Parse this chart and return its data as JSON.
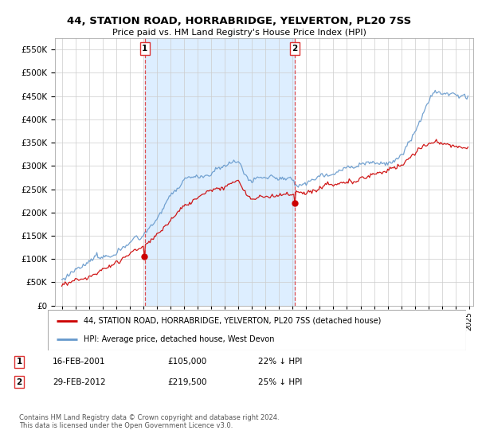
{
  "title": "44, STATION ROAD, HORRABRIDGE, YELVERTON, PL20 7SS",
  "subtitle": "Price paid vs. HM Land Registry's House Price Index (HPI)",
  "legend_line1": "44, STATION ROAD, HORRABRIDGE, YELVERTON, PL20 7SS (detached house)",
  "legend_line2": "HPI: Average price, detached house, West Devon",
  "footnote": "Contains HM Land Registry data © Crown copyright and database right 2024.\nThis data is licensed under the Open Government Licence v3.0.",
  "sale1_label": "1",
  "sale1_date": "16-FEB-2001",
  "sale1_price": "£105,000",
  "sale1_hpi": "22% ↓ HPI",
  "sale1_year": 2001.12,
  "sale2_label": "2",
  "sale2_date": "29-FEB-2012",
  "sale2_price": "£219,500",
  "sale2_hpi": "25% ↓ HPI",
  "sale2_year": 2012.16,
  "sale1_price_val": 105000,
  "sale2_price_val": 219500,
  "ylim": [
    0,
    575000
  ],
  "xlim_start": 1994.5,
  "xlim_end": 2025.3,
  "red_color": "#cc0000",
  "blue_color": "#6699cc",
  "shade_color": "#ddeeff",
  "grid_color": "#cccccc",
  "vline_color": "#dd3333",
  "background_color": "#ffffff"
}
